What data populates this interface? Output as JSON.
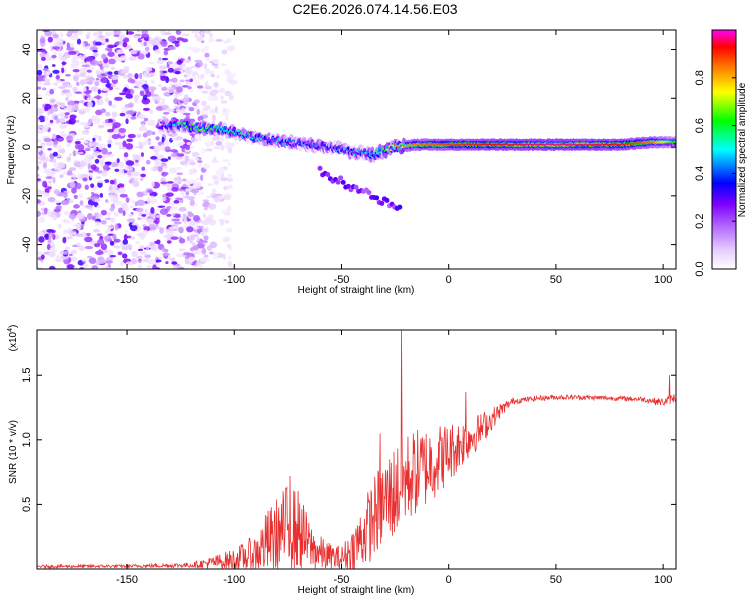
{
  "figure": {
    "title": "C2E6.2026.074.14.56.E03"
  },
  "chart_data": [
    {
      "type": "heatmap",
      "title": "",
      "xlabel": "Height of straight line (km)",
      "ylabel": "Frequency (Hz)",
      "xlim": [
        -192,
        106
      ],
      "ylim": [
        -50,
        48
      ],
      "xticks": [
        -150,
        -100,
        -50,
        0,
        50,
        100
      ],
      "xtick_labels": [
        "-150",
        "-100",
        "-50",
        "0",
        "50",
        "100"
      ],
      "yticks": [
        -40,
        -20,
        0,
        20,
        40
      ],
      "ytick_labels": [
        "-40",
        "-20",
        "0",
        "20",
        "40"
      ],
      "colorbar": {
        "label": "Normalized spectral amplitude",
        "range": [
          0.0,
          1.0
        ],
        "ticks": [
          0.0,
          0.2,
          0.4,
          0.6,
          0.8
        ],
        "tick_labels": [
          "0.0",
          "0.2",
          "0.4",
          "0.6",
          "0.8"
        ],
        "colormap": [
          "#ffffff",
          "#e6ccff",
          "#b266ff",
          "#7f00ff",
          "#0000ff",
          "#00ffff",
          "#00ff00",
          "#ffff00",
          "#ff8000",
          "#ff0000",
          "#ff00ff"
        ]
      },
      "ridge": {
        "description_values": "dominant frequency (Hz) vs height (km)",
        "x": [
          -135,
          -125,
          -115,
          -105,
          -95,
          -85,
          -75,
          -65,
          -55,
          -45,
          -35,
          -25,
          -15,
          0,
          20,
          50,
          80,
          95,
          106
        ],
        "y": [
          9,
          9,
          8,
          7,
          5,
          3,
          2,
          1,
          0,
          -2,
          -3,
          0,
          1,
          1,
          1,
          1,
          1,
          2,
          2
        ],
        "amplitude": [
          0.35,
          0.55,
          0.6,
          0.55,
          0.5,
          0.45,
          0.45,
          0.4,
          0.4,
          0.45,
          0.5,
          0.75,
          0.8,
          0.85,
          0.9,
          0.95,
          0.9,
          0.8,
          0.6
        ]
      },
      "noise_region_x": [
        -192,
        -100
      ]
    },
    {
      "type": "line",
      "title": "",
      "xlabel": "Height of straight line (km)",
      "ylabel": "SNR (10 * v/v)",
      "y_multiplier": "(x10",
      "y_multiplier_exp": "4",
      "y_multiplier_close": ")",
      "xlim": [
        -192,
        106
      ],
      "ylim": [
        0,
        18500
      ],
      "xticks": [
        -150,
        -100,
        -50,
        0,
        50,
        100
      ],
      "xtick_labels": [
        "-150",
        "-100",
        "-50",
        "0",
        "50",
        "100"
      ],
      "yticks": [
        5000,
        10000,
        15000
      ],
      "ytick_labels": [
        "0.5",
        "1.0",
        "1.5"
      ],
      "color": "#e83030",
      "envelope": {
        "x": [
          -192,
          -150,
          -120,
          -110,
          -100,
          -90,
          -85,
          -80,
          -75,
          -70,
          -65,
          -60,
          -55,
          -50,
          -45,
          -40,
          -35,
          -30,
          -25,
          -22,
          -20,
          -15,
          -10,
          -5,
          0,
          5,
          10,
          15,
          20,
          25,
          30,
          35,
          40,
          50,
          60,
          70,
          80,
          90,
          100,
          106
        ],
        "base": [
          200,
          220,
          300,
          500,
          700,
          1200,
          2000,
          2600,
          3200,
          3000,
          1800,
          1200,
          900,
          800,
          1500,
          2600,
          4000,
          5200,
          6000,
          6500,
          7000,
          7500,
          8000,
          8500,
          9000,
          9600,
          10200,
          10800,
          11600,
          12400,
          13000,
          13100,
          13200,
          13300,
          13300,
          13250,
          13200,
          13150,
          12900,
          13300
        ],
        "amp": [
          120,
          120,
          200,
          500,
          900,
          1500,
          2500,
          3000,
          3500,
          3200,
          2000,
          1400,
          1100,
          1000,
          1700,
          2600,
          3200,
          3500,
          3800,
          3800,
          3600,
          3400,
          3200,
          2800,
          2400,
          2000,
          1600,
          1300,
          900,
          500,
          250,
          200,
          200,
          200,
          180,
          180,
          180,
          200,
          300,
          400
        ]
      },
      "spikes": [
        {
          "x": -22,
          "y": 18500
        },
        {
          "x": -74,
          "y": 7200
        },
        {
          "x": -32,
          "y": 10500
        },
        {
          "x": 8,
          "y": 13700
        },
        {
          "x": 103,
          "y": 15000
        }
      ]
    }
  ]
}
